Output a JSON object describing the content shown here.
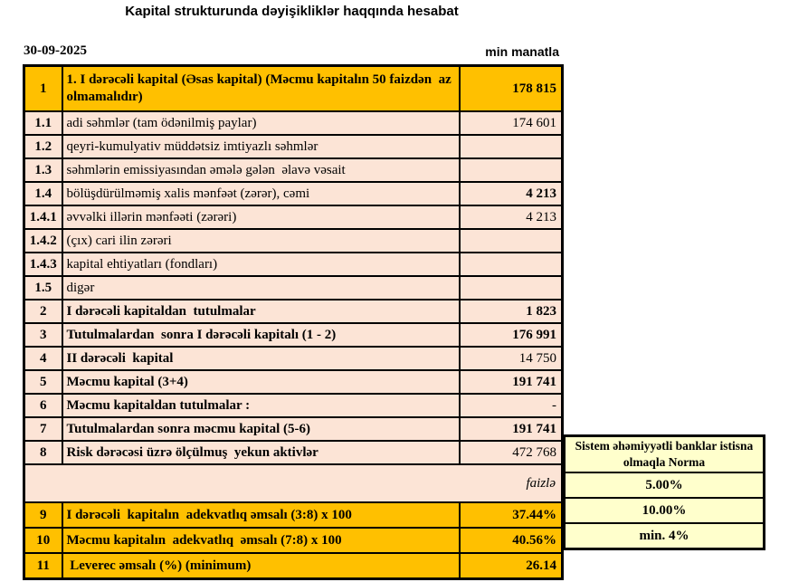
{
  "header": {
    "title": "Kapital strukturunda dəyişikliklər haqqında hesabat",
    "date": "30-09-2025",
    "unit": "min manatla"
  },
  "palette": {
    "gold": "#FFC000",
    "peach": "#FCE4D6",
    "norma_yellow": "#FFFFCC",
    "border": "#000000",
    "text": "#000000"
  },
  "table": {
    "rows": [
      {
        "num": "1",
        "label": "1. I dərəcəli kapital (Əsas kapital) (Məcmu kapitalın 50 faizdən  az olmamalıdır)",
        "value": "178 815",
        "style": "gold",
        "label_bold": true,
        "value_bold": true
      },
      {
        "num": "1.1",
        "label": "adi səhmlər (tam ödənilmiş paylar)",
        "value": "174 601",
        "style": "peach"
      },
      {
        "num": "1.2",
        "label": "qeyri-kumulyativ müddətsiz imtiyazlı səhmlər",
        "value": "",
        "style": "peach"
      },
      {
        "num": "1.3",
        "label": "səhmlərin emissiyasından əmələ gələn  əlavə vəsait",
        "value": "",
        "style": "peach"
      },
      {
        "num": "1.4",
        "label": "bölüşdürülməmiş xalis mənfəət (zərər), cəmi",
        "value": "4 213",
        "style": "peach",
        "value_bold": true
      },
      {
        "num": "1.4.1",
        "label": "əvvəlki illərin mənfəəti (zərəri)",
        "value": "4 213",
        "style": "peach"
      },
      {
        "num": "1.4.2",
        "label": "(çıx) cari ilin zərəri",
        "value": "",
        "style": "peach"
      },
      {
        "num": "1.4.3",
        "label": "kapital ehtiyatları (fondları)",
        "value": "",
        "style": "peach"
      },
      {
        "num": "1.5",
        "label": "digər",
        "value": "",
        "style": "peach"
      },
      {
        "num": "2",
        "label": "I dərəcəli kapitaldan  tutulmalar",
        "value": "1 823",
        "style": "peach",
        "label_bold": true,
        "value_bold": true
      },
      {
        "num": "3",
        "label": "Tutulmalardan  sonra I dərəcəli kapitalı (1 - 2)",
        "value": "176 991",
        "style": "peach",
        "label_bold": true,
        "value_bold": true
      },
      {
        "num": "4",
        "label": "II dərəcəli  kapital",
        "value": "14 750",
        "style": "peach",
        "label_bold": true
      },
      {
        "num": "5",
        "label": "Məcmu kapital (3+4)",
        "value": "191 741",
        "style": "peach",
        "label_bold": true,
        "value_bold": true
      },
      {
        "num": "6",
        "label": "Məcmu kapitaldan tutulmalar :",
        "value": "-",
        "style": "peach",
        "label_bold": true
      },
      {
        "num": "7",
        "label": "Tutulmalardan sonra məcmu kapital (5-6)",
        "value": "191 741",
        "style": "peach",
        "label_bold": true,
        "value_bold": true
      },
      {
        "num": "8",
        "label": "Risk dərəcəsi üzrə ölçülmuş  yekun aktivlər",
        "value": "472 768",
        "style": "peach",
        "label_bold": true
      },
      {
        "merged": true,
        "value": "faizlə",
        "style": "peach",
        "value_italic": true
      },
      {
        "num": "9",
        "label": "I dərəcəli  kapitalın  adekvatlıq əmsalı (3:8) x 100",
        "value": "37.44%",
        "style": "gold",
        "label_bold": true,
        "value_bold": true
      },
      {
        "num": "10",
        "label": "Məcmu kapitalın  adekvatlıq  əmsalı (7:8) x 100",
        "value": "40.56%",
        "style": "gold",
        "label_bold": true,
        "value_bold": true
      },
      {
        "num": "11",
        "label": " Leverec əmsalı (%) (minimum)",
        "value": "26.14",
        "style": "gold",
        "label_bold": true,
        "value_bold": true
      }
    ]
  },
  "norma": {
    "header": "Sistem əhəmiyyətli banklar istisna olmaqla Norma",
    "values": [
      "5.00%",
      "10.00%",
      "min. 4%"
    ]
  }
}
